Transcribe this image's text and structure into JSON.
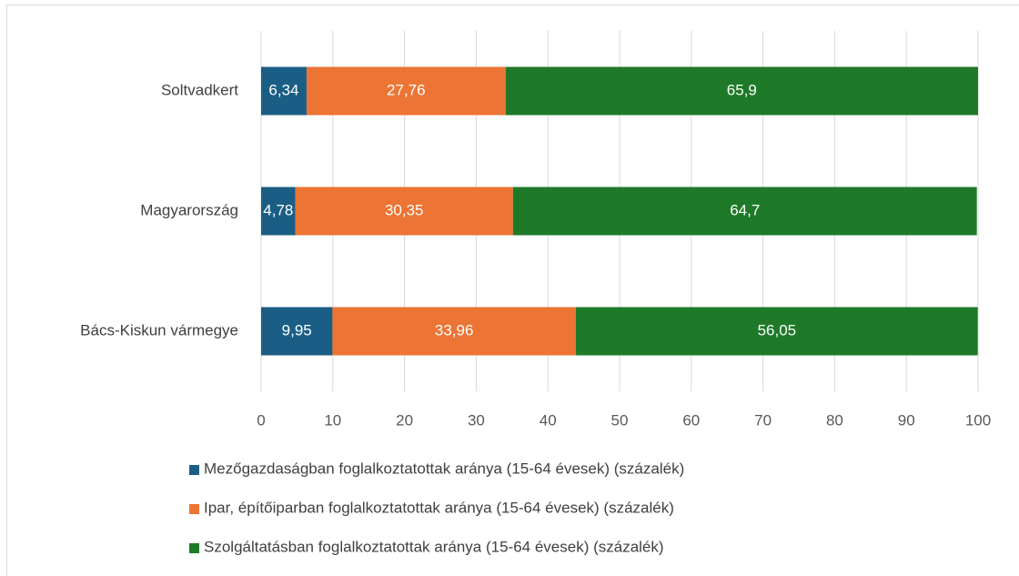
{
  "chart_data": {
    "type": "stacked_bar_horizontal",
    "categories": [
      "Soltvadkert",
      "Magyarország",
      "Bács-Kiskun vármegye"
    ],
    "series": [
      {
        "name": "Mezőgazdaságban foglalkoztatottak aránya (15-64 évesek) (százalék)",
        "color": "#1b5e85",
        "values": [
          6.34,
          4.78,
          9.95
        ],
        "value_labels": [
          "6,34",
          "4,78",
          "9,95"
        ]
      },
      {
        "name": "Ipar, építőiparban foglalkoztatottak aránya (15-64 évesek) (százalék)",
        "color": "#ec7434",
        "values": [
          27.76,
          30.35,
          33.96
        ],
        "value_labels": [
          "27,76",
          "30,35",
          "33,96"
        ]
      },
      {
        "name": "Szolgáltatásban foglalkoztatottak aránya (15-64 évesek) (százalék)",
        "color": "#1e7a28",
        "values": [
          65.9,
          64.7,
          56.05
        ],
        "value_labels": [
          "65,9",
          "64,7",
          "56,05"
        ]
      }
    ],
    "xlim": [
      0,
      100
    ],
    "xticks": [
      0,
      10,
      20,
      30,
      40,
      50,
      60,
      70,
      80,
      90,
      100
    ],
    "grid": true,
    "legend": "bottom"
  }
}
